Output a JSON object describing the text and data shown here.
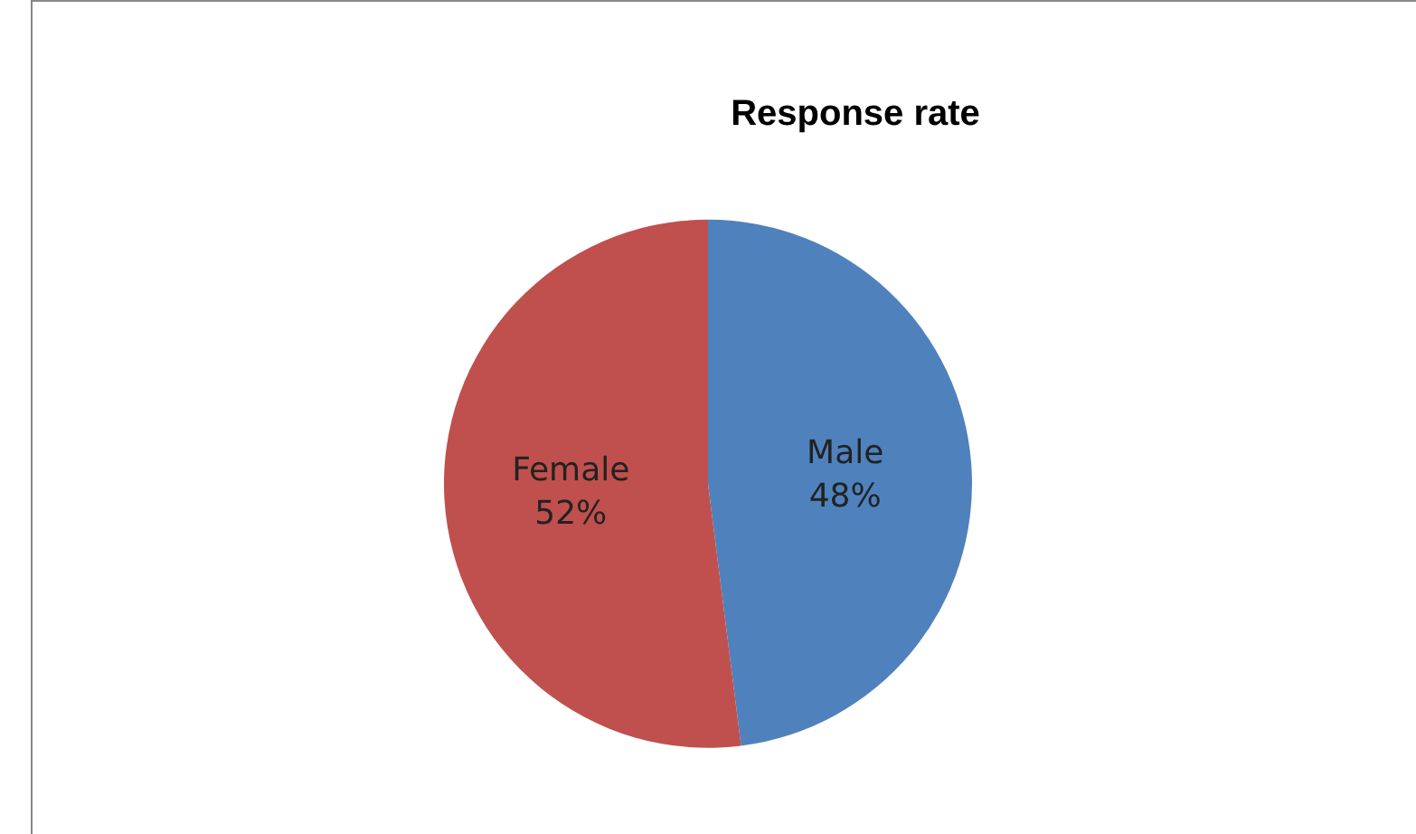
{
  "chart_data": {
    "type": "pie",
    "title": "Response rate",
    "categories": [
      "Male",
      "Female"
    ],
    "values": [
      48,
      52
    ],
    "colors": [
      "#4f81bd",
      "#c0504d"
    ],
    "value_labels": [
      "48%",
      "52%"
    ],
    "legend": false
  }
}
